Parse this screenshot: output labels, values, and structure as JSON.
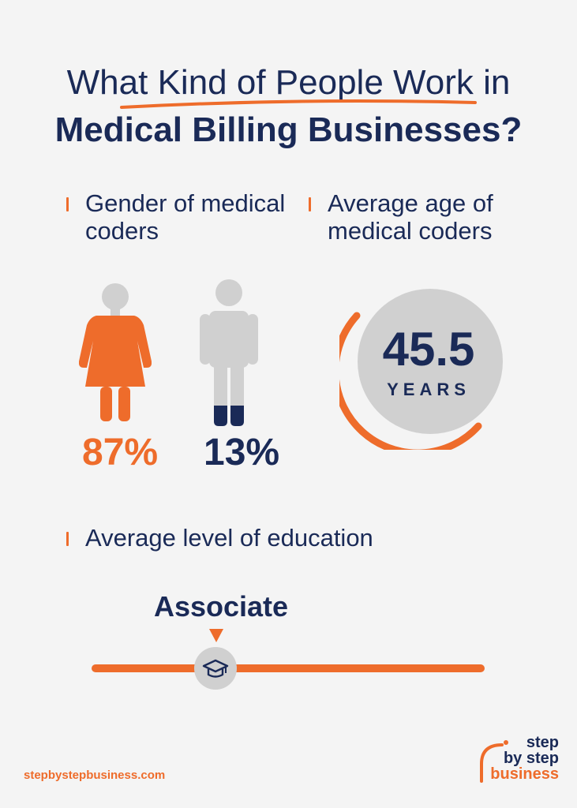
{
  "title": {
    "line1": "What Kind of People Work in",
    "line2": "Medical Billing Businesses?"
  },
  "gender": {
    "label": "Gender of medical coders",
    "female_pct": "87%",
    "male_pct": "13%",
    "female_share": 0.87,
    "male_share": 0.13
  },
  "age": {
    "label": "Average age of medical coders",
    "value": "45.5",
    "unit": "YEARS"
  },
  "education": {
    "label": "Average level of education",
    "value": "Associate",
    "icon": "graduation-cap-icon"
  },
  "footer": {
    "url": "stepbystepbusiness.com",
    "logo_line1": "step",
    "logo_line2": "by step",
    "logo_line3": "business"
  },
  "colors": {
    "accent": "#ee6c2b",
    "navy": "#1a2a57",
    "gray": "#d0d0d0",
    "background": "#f4f4f4"
  }
}
